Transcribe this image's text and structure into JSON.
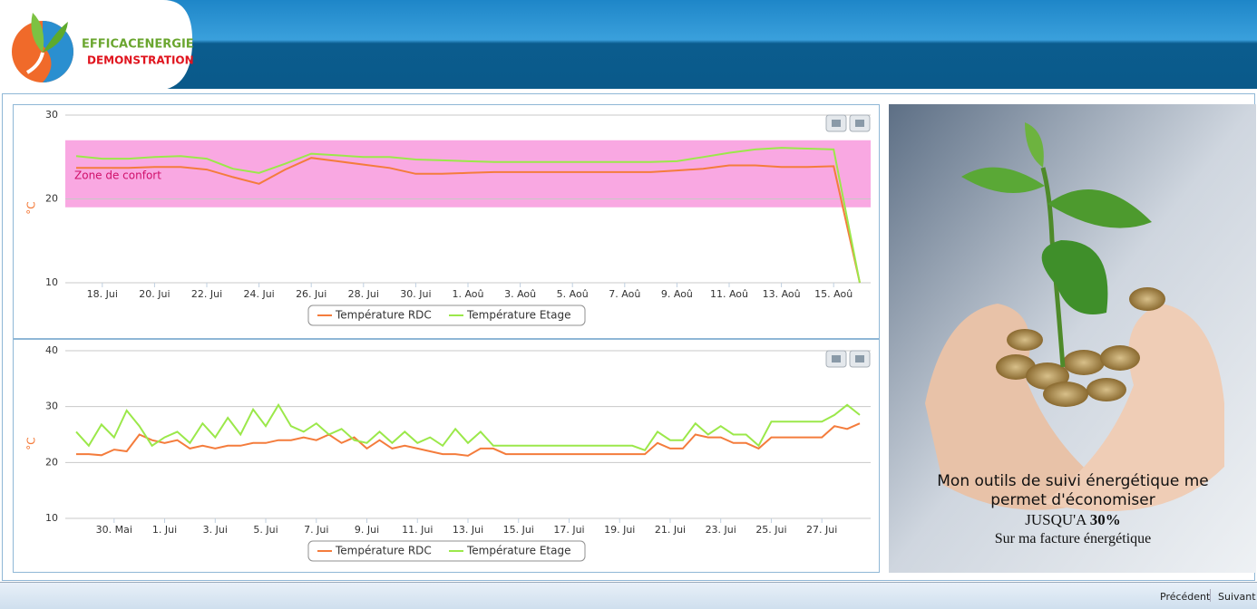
{
  "header": {
    "brand": "EFFICACENERGIE",
    "subtitle": "DEMONSTRATION"
  },
  "chart_data": [
    {
      "type": "line",
      "y_label": "°C",
      "ylim": [
        10,
        30
      ],
      "yticks": [
        10,
        20,
        30
      ],
      "grid": true,
      "legend": "bottom",
      "band": {
        "from": 19,
        "to": 27,
        "label": "Zone de confort",
        "color": "#f9a8e2",
        "label_color": "#d0106a"
      },
      "categories": [
        null,
        "18. Jui",
        null,
        "20. Jui",
        null,
        "22. Jui",
        null,
        "24. Jui",
        null,
        "26. Jui",
        null,
        "28. Jui",
        null,
        "30. Jui",
        null,
        "1. Aoû",
        null,
        "3. Aoû",
        null,
        "5. Aoû",
        null,
        "7. Aoû",
        null,
        "9. Aoû",
        null,
        "11. Aoû",
        null,
        "13. Aoû",
        null,
        "15. Aoû",
        null
      ],
      "series": [
        {
          "name": "Température RDC",
          "color": "#f47c3c",
          "values": [
            23.7,
            23.7,
            23.7,
            23.8,
            23.8,
            23.5,
            22.6,
            21.8,
            23.5,
            24.9,
            24.5,
            24.1,
            23.7,
            23.0,
            23.0,
            23.1,
            23.2,
            23.2,
            23.2,
            23.2,
            23.2,
            23.2,
            23.2,
            23.4,
            23.6,
            24.0,
            24.0,
            23.8,
            23.8,
            23.9,
            10
          ]
        },
        {
          "name": "Température Etage",
          "color": "#9be84a",
          "values": [
            25.1,
            24.8,
            24.8,
            25.0,
            25.1,
            24.8,
            23.6,
            23.1,
            24.2,
            25.4,
            25.2,
            25.0,
            25.0,
            24.7,
            24.6,
            24.5,
            24.4,
            24.4,
            24.4,
            24.4,
            24.4,
            24.4,
            24.4,
            24.5,
            25.0,
            25.5,
            25.9,
            26.1,
            26.0,
            25.9,
            10
          ]
        }
      ]
    },
    {
      "type": "line",
      "y_label": "°C",
      "ylim": [
        10,
        40
      ],
      "yticks": [
        10,
        20,
        30,
        40
      ],
      "grid": true,
      "legend": "bottom",
      "categories": [
        null,
        null,
        null,
        "30. Mai",
        null,
        null,
        null,
        "1. Jui",
        null,
        null,
        null,
        "3. Jui",
        null,
        null,
        null,
        "5. Jui",
        null,
        null,
        null,
        "7. Jui",
        null,
        null,
        null,
        "9. Jui",
        null,
        null,
        null,
        "11. Jui",
        null,
        null,
        null,
        "13. Jui",
        null,
        null,
        null,
        "15. Jui",
        null,
        null,
        null,
        "17. Jui",
        null,
        null,
        null,
        "19. Jui",
        null,
        null,
        null,
        "21. Jui",
        null,
        null,
        null,
        "23. Jui",
        null,
        null,
        null,
        "25. Jui",
        null,
        null,
        null,
        "27. Jui",
        null,
        null,
        null
      ],
      "series": [
        {
          "name": "Température RDC",
          "color": "#f47c3c",
          "values": [
            21.5,
            21.5,
            21.3,
            22.3,
            22.0,
            25.0,
            24.0,
            23.5,
            24.0,
            22.5,
            23.0,
            22.5,
            23.0,
            23.0,
            23.5,
            23.5,
            24.0,
            24.0,
            24.5,
            24.0,
            25.0,
            23.5,
            24.5,
            22.5,
            24.0,
            22.5,
            23.0,
            22.5,
            22.0,
            21.5,
            21.5,
            21.2,
            22.5,
            22.5,
            21.5,
            21.5,
            21.5,
            21.5,
            21.5,
            21.5,
            21.5,
            21.5,
            21.5,
            21.5,
            21.5,
            21.5,
            23.5,
            22.5,
            22.5,
            25.0,
            24.5,
            24.5,
            23.5,
            23.5,
            22.5,
            24.5,
            24.5,
            24.5,
            24.5,
            24.5,
            26.5,
            26.0,
            27.0
          ]
        },
        {
          "name": "Température Etage",
          "color": "#9be84a",
          "values": [
            25.5,
            23.0,
            26.8,
            24.5,
            29.3,
            26.5,
            23.0,
            24.5,
            25.5,
            23.5,
            27.0,
            24.5,
            28.0,
            25.0,
            29.5,
            26.5,
            30.3,
            26.5,
            25.5,
            27.0,
            25.0,
            26.0,
            24.0,
            23.5,
            25.5,
            23.5,
            25.5,
            23.5,
            24.5,
            23.0,
            26.0,
            23.5,
            25.5,
            23.0,
            23.0,
            23.0,
            23.0,
            23.0,
            23.0,
            23.0,
            23.0,
            23.0,
            23.0,
            23.0,
            23.0,
            22.2,
            25.5,
            24.0,
            24.0,
            27.0,
            25.0,
            26.5,
            25.0,
            25.0,
            23.0,
            27.3,
            27.3,
            27.3,
            27.3,
            27.3,
            28.5,
            30.3,
            28.5
          ]
        }
      ]
    }
  ],
  "promo": {
    "text": "Mon outils de suivi énergétique me permet d'économiser",
    "highlight_label": "JUSQU'A",
    "highlight": "30%",
    "footer": "Sur ma facture énergétique"
  },
  "footer": {
    "prev": "Précédent",
    "next": "Suivant"
  }
}
